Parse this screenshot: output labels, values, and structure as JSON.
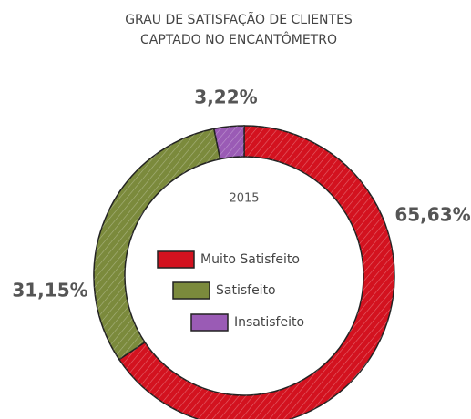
{
  "chart_data": {
    "type": "donut",
    "title": [
      "GRAU DE SATISFAÇÃO DE CLIENTES",
      "CAPTADO NO ENCANTÔMETRO"
    ],
    "center_label": "2015",
    "categories": [
      "Muito Satisfeito",
      "Satisfeito",
      "Insatisfeito"
    ],
    "values": [
      65.63,
      31.15,
      3.22
    ],
    "value_labels": [
      "65,63%",
      "31,15%",
      "3,22%"
    ],
    "colors": [
      "#d3121f",
      "#7b8a3c",
      "#9a5bb5"
    ]
  }
}
